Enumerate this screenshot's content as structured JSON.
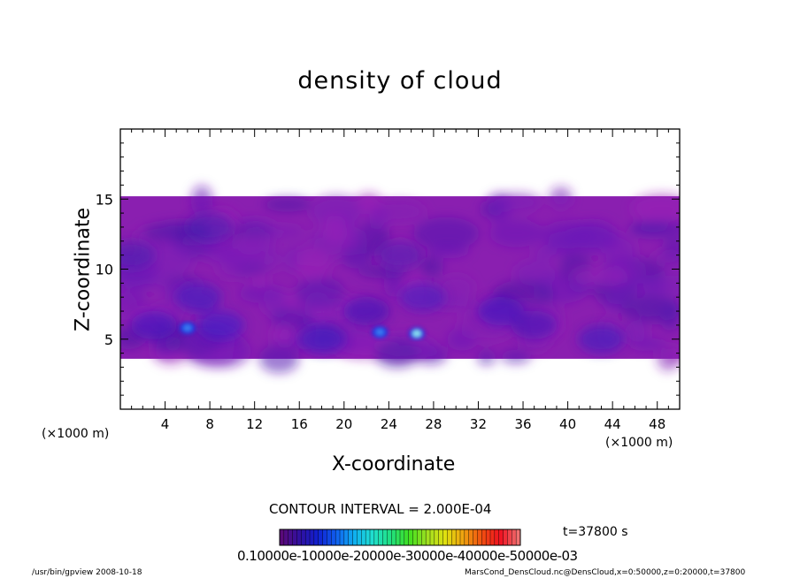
{
  "chart_data": {
    "type": "heatmap",
    "title": "density of cloud",
    "xlabel": "X-coordinate",
    "ylabel": "Z-coordinate",
    "x_unit_left": "(×1000 m)",
    "x_unit_right": "(×1000 m)",
    "xlim": [
      0,
      50
    ],
    "ylim": [
      0,
      20
    ],
    "x_ticks": [
      4,
      8,
      12,
      16,
      20,
      24,
      28,
      32,
      36,
      40,
      44,
      48
    ],
    "y_ticks": [
      5,
      10,
      15
    ],
    "cloud_layer": {
      "z_bottom": 3.6,
      "z_top": 15.2
    },
    "bright_cells": [
      {
        "x": 6.0,
        "z": 5.8,
        "level": "light-blue"
      },
      {
        "x": 23.2,
        "z": 5.5,
        "level": "light-blue"
      },
      {
        "x": 26.5,
        "z": 5.4,
        "level": "light-cyan"
      }
    ],
    "contour_interval": "CONTOUR INTERVAL = 2.000E-04",
    "colorbar_labels": "0.10000e-10000e-20000e-30000e-40000e-50000e-03",
    "colorbar_colors": [
      "#5a0a7a",
      "#3010a0",
      "#1020d0",
      "#1060f0",
      "#10b0f0",
      "#20e0d0",
      "#20e080",
      "#40e020",
      "#a0e020",
      "#e0e010",
      "#f0a010",
      "#f05010",
      "#f01020",
      "#f07070"
    ],
    "time_label": "t=37800  s"
  },
  "footer": {
    "left": "/usr/bin/gpview   2008-10-18",
    "right": "MarsCond_DensCloud.nc@DensCloud,x=0:50000,z=0:20000,t=37800"
  }
}
